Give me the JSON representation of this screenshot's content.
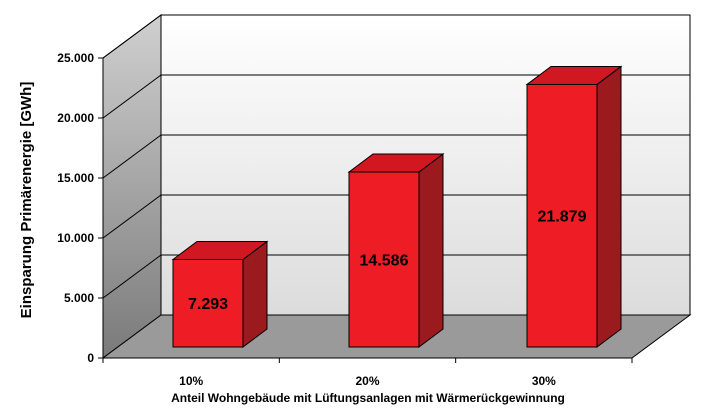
{
  "chart_data": {
    "type": "bar",
    "categories": [
      "10%",
      "20%",
      "30%"
    ],
    "values": [
      7293,
      14586,
      21879
    ],
    "value_labels": [
      "7.293",
      "14.586",
      "21.879"
    ],
    "title": "",
    "xlabel": "Anteil Wohngebäude mit Lüftungsanlagen mit Wärmerückgewinnung",
    "ylabel": "Einsparung Primärenergie [GWh]",
    "ylim": [
      0,
      25000
    ],
    "yticks": [
      0,
      5000,
      10000,
      15000,
      20000,
      25000
    ],
    "ytick_labels": [
      "0",
      "5.000",
      "10.000",
      "15.000",
      "20.000",
      "25.000"
    ],
    "grid": true,
    "legend": "none",
    "style": "3d-column",
    "colors": {
      "bar_front": "#ee1c24",
      "bar_top": "#d11820",
      "bar_side": "#9a1a1e",
      "back_wall_top": "#ffffff",
      "back_wall_bottom": "#dcdcdc",
      "side_wall_top": "#d0d0d0",
      "side_wall_bottom": "#7a7a7a",
      "floor": "#9a9a9a"
    }
  }
}
